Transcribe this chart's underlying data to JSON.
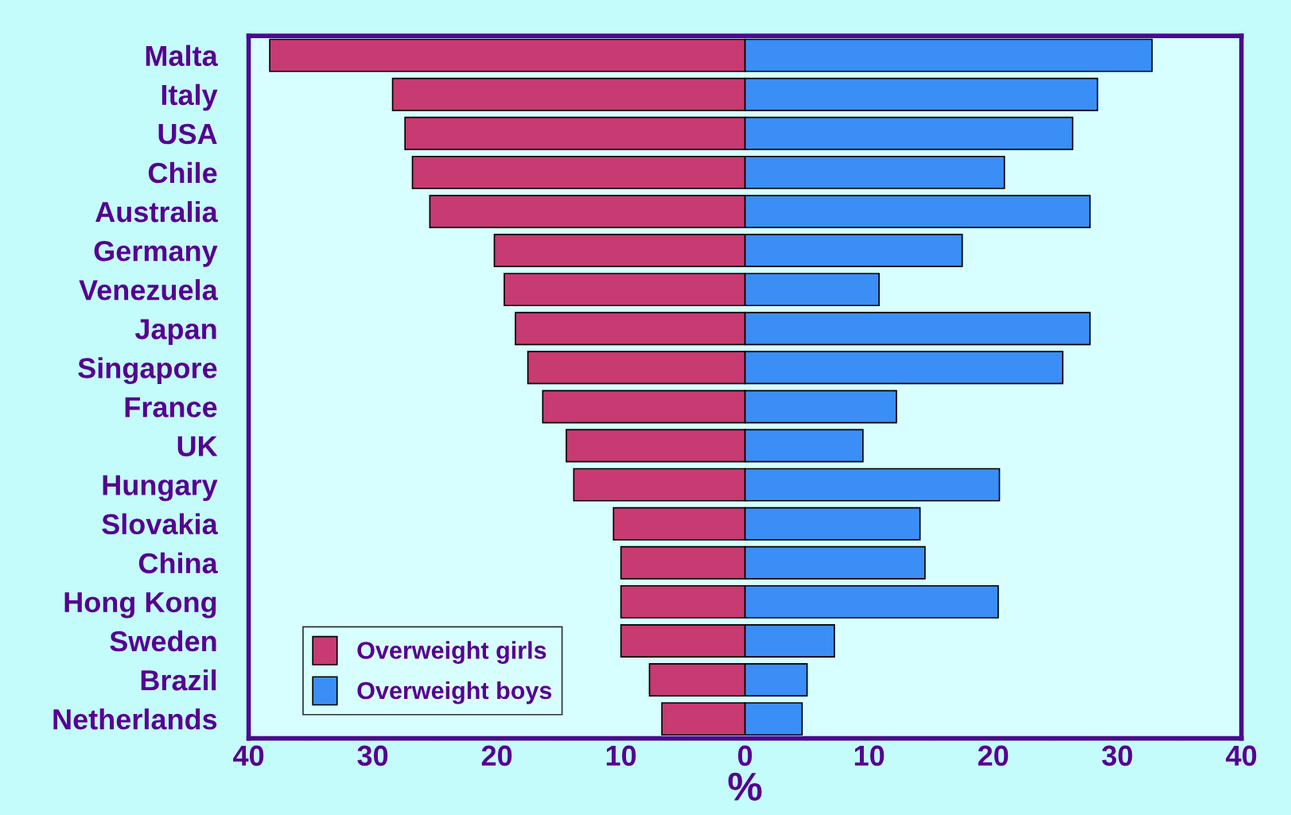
{
  "chart_data": {
    "type": "bar",
    "orientation": "horizontal",
    "stacked": true,
    "xlabel": "%",
    "categories": [
      "Malta",
      "Italy",
      "USA",
      "Chile",
      "Australia",
      "Germany",
      "Venezuela",
      "Japan",
      "Singapore",
      "France",
      "UK",
      "Hungary",
      "Slovakia",
      "China",
      "Hong Kong",
      "Sweden",
      "Brazil",
      "Netherlands"
    ],
    "series": [
      {
        "name": "Overweight girls",
        "color": "#c83a72",
        "values": [
          -38.3,
          -28.4,
          -27.4,
          -26.8,
          -25.4,
          -20.2,
          -19.4,
          -18.5,
          -17.5,
          -16.3,
          -14.4,
          -13.8,
          -10.6,
          -10.0,
          -10.0,
          -10.0,
          -7.7,
          -6.7
        ]
      },
      {
        "name": "Overweight boys",
        "color": "#3a8ef5",
        "values": [
          32.8,
          28.4,
          26.4,
          20.9,
          27.8,
          17.5,
          10.8,
          27.8,
          25.6,
          12.2,
          9.5,
          20.5,
          14.1,
          14.5,
          20.4,
          7.2,
          5.0,
          4.6
        ]
      }
    ],
    "xlim": [
      -40,
      40
    ],
    "xticks": [
      {
        "value": -40,
        "label": "40"
      },
      {
        "value": -35,
        "label": null
      },
      {
        "value": -30,
        "label": "30"
      },
      {
        "value": -25,
        "label": null
      },
      {
        "value": -20,
        "label": "20"
      },
      {
        "value": -15,
        "label": null
      },
      {
        "value": -10,
        "label": "10"
      },
      {
        "value": -5,
        "label": null
      },
      0,
      {
        "value": 5,
        "label": null
      },
      10,
      {
        "value": 15,
        "label": null
      },
      20,
      {
        "value": 25,
        "label": null
      },
      30,
      {
        "value": 35,
        "label": null
      },
      40
    ],
    "grid": false,
    "legend": "bottom left"
  }
}
